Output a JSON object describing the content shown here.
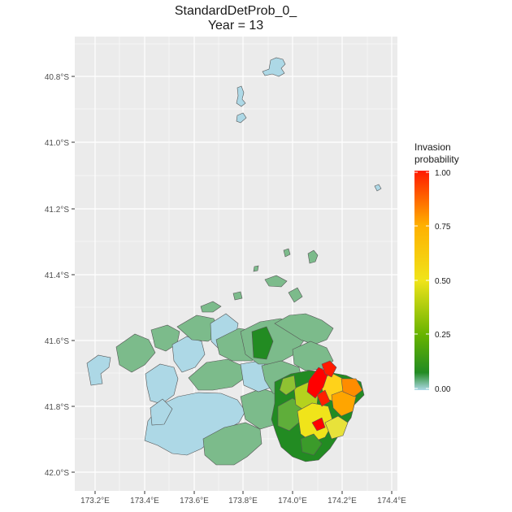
{
  "title": "StandardDetProb_0_",
  "subtitle": "Year = 13",
  "axes": {
    "x_ticks": [
      "173.2°E",
      "173.4°E",
      "173.6°E",
      "173.8°E",
      "174.0°E",
      "174.2°E",
      "174.4°E"
    ],
    "y_ticks": [
      "40.8°S",
      "41.0°S",
      "41.2°S",
      "41.4°S",
      "41.6°S",
      "41.8°S",
      "42.0°S"
    ]
  },
  "legend": {
    "title_line1": "Invasion",
    "title_line2": "probability",
    "labels": [
      "1.00",
      "0.75",
      "0.50",
      "0.25",
      "0.00"
    ],
    "scale": "continuous",
    "range": [
      0,
      1
    ]
  },
  "colors": {
    "panel_bg": "#ebebeb",
    "grid": "#ffffff",
    "uninvaded_light_blue": "#add8e6",
    "low_green": "#7cbb8b",
    "dark_green": "#228b22",
    "mid_yellow": "#f0e41a",
    "high_orange": "#ff9900",
    "max_red": "#ff0000"
  }
}
